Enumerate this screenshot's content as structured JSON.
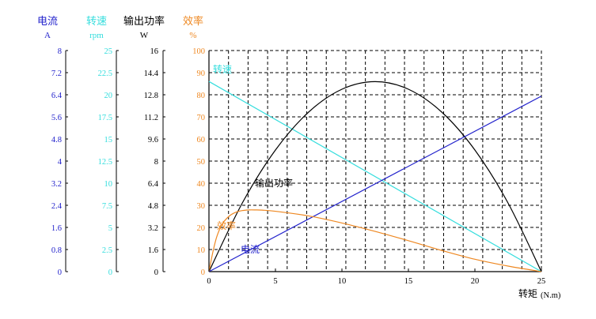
{
  "chart_data": {
    "type": "line",
    "x_unit_label": "转矩",
    "x_unit_suffix": "(N.m)",
    "x_ticks": [
      0,
      5,
      10,
      15,
      20,
      25
    ],
    "xlim": [
      0,
      25
    ],
    "grid": true,
    "axes": [
      {
        "key": "current",
        "title": "电流",
        "unit": "A",
        "color": "#2222cc",
        "ticks": [
          "0",
          "0.8",
          "1.6",
          "2.4",
          "3.2",
          "4",
          "4.8",
          "5.6",
          "6.4",
          "7.2",
          "8"
        ],
        "range": [
          0,
          8
        ]
      },
      {
        "key": "speed",
        "title": "转速",
        "unit": "rpm",
        "color": "#33dddd",
        "ticks": [
          "0",
          "2.5",
          "5",
          "7.5",
          "10",
          "12.5",
          "15",
          "17.5",
          "20",
          "22.5",
          "25"
        ],
        "range": [
          0,
          25
        ]
      },
      {
        "key": "power",
        "title": "输出功率",
        "unit": "W",
        "color": "#000000",
        "ticks": [
          "0",
          "1.6",
          "3.2",
          "4.8",
          "6.4",
          "8",
          "9.6",
          "11.2",
          "12.8",
          "14.4",
          "16"
        ],
        "range": [
          0,
          16
        ]
      },
      {
        "key": "efficiency",
        "title": "效率",
        "unit": "%",
        "color": "#ee8822",
        "ticks": [
          "0",
          "10",
          "20",
          "30",
          "40",
          "50",
          "60",
          "70",
          "80",
          "90",
          "100"
        ],
        "range": [
          0,
          100
        ]
      }
    ],
    "series": [
      {
        "name": "转速",
        "axis": "speed",
        "color": "#33dddd",
        "x": [
          0,
          25
        ],
        "y": [
          21.5,
          0
        ]
      },
      {
        "name": "输出功率",
        "axis": "power",
        "color": "#000000",
        "x": [
          0,
          2.5,
          5,
          7.5,
          10,
          12.5,
          15,
          17.5,
          20,
          22.5,
          25
        ],
        "y": [
          0,
          4.95,
          8.8,
          11.55,
          13.2,
          13.75,
          13.2,
          11.55,
          8.8,
          4.95,
          0
        ]
      },
      {
        "name": "电流",
        "axis": "current",
        "color": "#2222cc",
        "x": [
          0,
          25
        ],
        "y": [
          0,
          6.35
        ]
      },
      {
        "name": "效率",
        "axis": "efficiency",
        "color": "#ee8822",
        "x": [
          0,
          0.3,
          0.6,
          1,
          1.5,
          2,
          2.5,
          3,
          3.5,
          4,
          5,
          7.5,
          10,
          12.5,
          15,
          17.5,
          20,
          22.5,
          25
        ],
        "y": [
          0,
          9,
          16,
          21.5,
          25,
          26.8,
          27.6,
          27.9,
          27.9,
          27.8,
          27.3,
          25.2,
          22,
          18.2,
          14,
          9.6,
          5.6,
          2.5,
          0
        ]
      }
    ],
    "annotations": [
      {
        "text": "转速",
        "series": "转速"
      },
      {
        "text": "输出功率",
        "series": "输出功率"
      },
      {
        "text": "效率",
        "series": "效率"
      },
      {
        "text": "电流",
        "series": "电流"
      }
    ]
  }
}
